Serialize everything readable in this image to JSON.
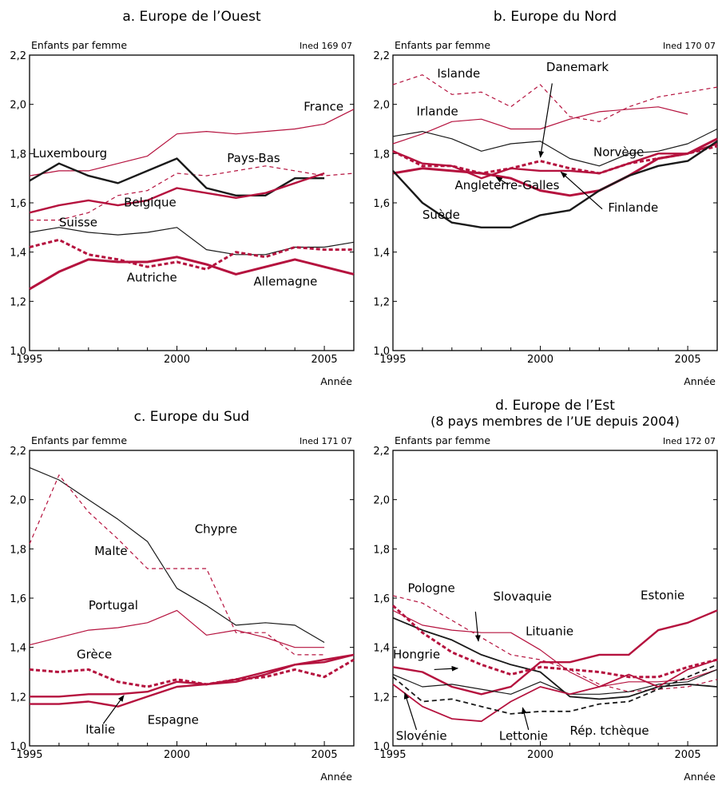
{
  "colors": {
    "red": "#b5123e",
    "black": "#1a1a1a"
  },
  "chart_data": [
    {
      "type": "line",
      "title": "a. Europe de l’Ouest",
      "subtitle": "",
      "ylabel": "Enfants par femme",
      "xlabel": "Année",
      "source": "Ined 169 07",
      "xlim": [
        1995,
        2006
      ],
      "ylim": [
        1.0,
        2.2
      ],
      "yticks": [
        "1,0",
        "1,2",
        "1,4",
        "1,6",
        "1,8",
        "2,0",
        "2,2"
      ],
      "xticks": [
        "1995",
        "2000",
        "2005"
      ],
      "x": [
        1995,
        1996,
        1997,
        1998,
        1999,
        2000,
        2001,
        2002,
        2003,
        2004,
        2005,
        2006
      ],
      "series": [
        {
          "name": "France",
          "color": "red",
          "width": 1.2,
          "dash": "",
          "values": [
            1.71,
            1.73,
            1.73,
            1.76,
            1.79,
            1.88,
            1.89,
            1.88,
            1.89,
            1.9,
            1.92,
            1.98
          ]
        },
        {
          "name": "Pays-Bas",
          "color": "red",
          "width": 1.2,
          "dash": "5,4",
          "values": [
            1.53,
            1.53,
            1.56,
            1.63,
            1.65,
            1.72,
            1.71,
            1.73,
            1.75,
            1.73,
            1.71,
            1.72
          ]
        },
        {
          "name": "Luxembourg",
          "color": "black",
          "width": 2.4,
          "dash": "",
          "values": [
            1.69,
            1.76,
            1.71,
            1.68,
            1.73,
            1.78,
            1.66,
            1.63,
            1.63,
            1.7,
            1.7,
            null
          ]
        },
        {
          "name": "Belgique",
          "color": "red",
          "width": 2.4,
          "dash": "",
          "values": [
            1.56,
            1.59,
            1.61,
            1.59,
            1.61,
            1.66,
            1.64,
            1.62,
            1.64,
            1.68,
            1.72,
            null
          ]
        },
        {
          "name": "Suisse",
          "color": "black",
          "width": 1.2,
          "dash": "",
          "values": [
            1.48,
            1.5,
            1.48,
            1.47,
            1.48,
            1.5,
            1.41,
            1.39,
            1.39,
            1.42,
            1.42,
            1.44
          ]
        },
        {
          "name": "Autriche",
          "color": "red",
          "width": 3,
          "dash": "5,3",
          "values": [
            1.42,
            1.45,
            1.39,
            1.37,
            1.34,
            1.36,
            1.33,
            1.4,
            1.38,
            1.42,
            1.41,
            1.41
          ]
        },
        {
          "name": "Allemagne",
          "color": "red",
          "width": 3,
          "dash": "",
          "values": [
            1.25,
            1.32,
            1.37,
            1.36,
            1.36,
            1.38,
            1.35,
            1.31,
            1.34,
            1.37,
            1.34,
            1.31
          ]
        }
      ],
      "annotations": [
        {
          "text": "France",
          "x": 2004.3,
          "y": 1.975
        },
        {
          "text": "Pays-Bas",
          "x": 2001.7,
          "y": 1.765
        },
        {
          "text": "Luxembourg",
          "x": 1995.1,
          "y": 1.785
        },
        {
          "text": "Belgique",
          "x": 1998.2,
          "y": 1.585
        },
        {
          "text": "Suisse",
          "x": 1996.0,
          "y": 1.505
        },
        {
          "text": "Autriche",
          "x": 1998.3,
          "y": 1.28
        },
        {
          "text": "Allemagne",
          "x": 2002.6,
          "y": 1.265
        }
      ],
      "arrows": []
    },
    {
      "type": "line",
      "title": "b. Europe du Nord",
      "subtitle": "",
      "ylabel": "Enfants par femme",
      "xlabel": "Année",
      "source": "Ined 170 07",
      "xlim": [
        1995,
        2006
      ],
      "ylim": [
        1.0,
        2.2
      ],
      "yticks": [
        "1,0",
        "1,2",
        "1,4",
        "1,6",
        "1,8",
        "2,0",
        "2,2"
      ],
      "xticks": [
        "1995",
        "2000",
        "2005"
      ],
      "x": [
        1995,
        1996,
        1997,
        1998,
        1999,
        2000,
        2001,
        2002,
        2003,
        2004,
        2005,
        2006
      ],
      "series": [
        {
          "name": "Islande",
          "color": "red",
          "width": 1.2,
          "dash": "5,4",
          "values": [
            2.08,
            2.12,
            2.04,
            2.05,
            1.99,
            2.08,
            1.95,
            1.93,
            1.99,
            2.03,
            2.05,
            2.07
          ]
        },
        {
          "name": "Irlande",
          "color": "red",
          "width": 1.2,
          "dash": "",
          "values": [
            1.84,
            1.88,
            1.93,
            1.94,
            1.9,
            1.9,
            1.94,
            1.97,
            1.98,
            1.99,
            1.96,
            null
          ]
        },
        {
          "name": "Norvège",
          "color": "black",
          "width": 1.2,
          "dash": "",
          "values": [
            1.87,
            1.89,
            1.86,
            1.81,
            1.84,
            1.85,
            1.78,
            1.75,
            1.8,
            1.81,
            1.84,
            1.9
          ]
        },
        {
          "name": "Danemark",
          "color": "red",
          "width": 3,
          "dash": "5,3",
          "values": [
            1.81,
            1.75,
            1.75,
            1.72,
            1.74,
            1.77,
            1.74,
            1.72,
            1.76,
            1.78,
            1.8,
            1.83
          ]
        },
        {
          "name": "Angleterre-Galles",
          "color": "red",
          "width": 3,
          "dash": "",
          "values": [
            1.72,
            1.74,
            1.73,
            1.72,
            1.7,
            1.65,
            1.63,
            1.65,
            1.71,
            1.78,
            1.8,
            1.86
          ]
        },
        {
          "name": "Finlande",
          "color": "red",
          "width": 2.4,
          "dash": "",
          "values": [
            1.81,
            1.76,
            1.75,
            1.7,
            1.74,
            1.73,
            1.73,
            1.72,
            1.76,
            1.8,
            1.8,
            1.84
          ]
        },
        {
          "name": "Suède",
          "color": "black",
          "width": 2.4,
          "dash": "",
          "values": [
            1.73,
            1.6,
            1.52,
            1.5,
            1.5,
            1.55,
            1.57,
            1.65,
            1.71,
            1.75,
            1.77,
            1.85
          ]
        }
      ],
      "annotations": [
        {
          "text": "Islande",
          "x": 1996.5,
          "y": 2.11
        },
        {
          "text": "Danemark",
          "x": 2000.2,
          "y": 2.135
        },
        {
          "text": "Irlande",
          "x": 1995.8,
          "y": 1.955
        },
        {
          "text": "Norvège",
          "x": 2001.8,
          "y": 1.79
        },
        {
          "text": "Angleterre-Galles",
          "x": 1997.1,
          "y": 1.655
        },
        {
          "text": "Finlande",
          "x": 2002.3,
          "y": 1.565
        },
        {
          "text": "Suède",
          "x": 1996.0,
          "y": 1.535
        }
      ],
      "arrows": [
        {
          "from": [
            2000.4,
            2.085
          ],
          "to": [
            2000.0,
            1.785
          ]
        },
        {
          "from": [
            1998.9,
            1.675
          ],
          "to": [
            1998.5,
            1.705
          ]
        },
        {
          "from": [
            2002.1,
            1.575
          ],
          "to": [
            2000.7,
            1.725
          ]
        }
      ]
    },
    {
      "type": "line",
      "title": "c. Europe du Sud",
      "subtitle": "",
      "ylabel": "Enfants par femme",
      "xlabel": "Année",
      "source": "Ined 171 07",
      "xlim": [
        1995,
        2006
      ],
      "ylim": [
        1.0,
        2.2
      ],
      "yticks": [
        "1,0",
        "1,2",
        "1,4",
        "1,6",
        "1,8",
        "2,0",
        "2,2"
      ],
      "xticks": [
        "1995",
        "2000",
        "2005"
      ],
      "x": [
        1995,
        1996,
        1997,
        1998,
        1999,
        2000,
        2001,
        2002,
        2003,
        2004,
        2005,
        2006
      ],
      "series": [
        {
          "name": "Chypre",
          "color": "black",
          "width": 1.2,
          "dash": "",
          "values": [
            2.13,
            2.08,
            2.0,
            1.92,
            1.83,
            1.64,
            1.57,
            1.49,
            1.5,
            1.49,
            1.42,
            null
          ]
        },
        {
          "name": "Malte",
          "color": "red",
          "width": 1.2,
          "dash": "5,4",
          "values": [
            1.82,
            2.1,
            1.95,
            1.84,
            1.72,
            1.72,
            1.72,
            1.46,
            1.46,
            1.37,
            1.37,
            null
          ]
        },
        {
          "name": "Portugal",
          "color": "red",
          "width": 1.2,
          "dash": "",
          "values": [
            1.41,
            1.44,
            1.47,
            1.48,
            1.5,
            1.55,
            1.45,
            1.47,
            1.44,
            1.4,
            1.4,
            null
          ]
        },
        {
          "name": "Grèce",
          "color": "red",
          "width": 3,
          "dash": "5,3",
          "values": [
            1.31,
            1.3,
            1.31,
            1.26,
            1.24,
            1.27,
            1.25,
            1.27,
            1.28,
            1.31,
            1.28,
            1.35
          ]
        },
        {
          "name": "Espagne",
          "color": "red",
          "width": 2.4,
          "dash": "",
          "values": [
            1.17,
            1.17,
            1.18,
            1.16,
            1.2,
            1.24,
            1.25,
            1.26,
            1.29,
            1.33,
            1.34,
            1.37
          ]
        },
        {
          "name": "Italie",
          "color": "red",
          "width": 2.4,
          "dash": "",
          "values": [
            1.2,
            1.2,
            1.21,
            1.21,
            1.22,
            1.26,
            1.25,
            1.27,
            1.3,
            1.33,
            1.35,
            1.37
          ]
        }
      ],
      "annotations": [
        {
          "text": "Chypre",
          "x": 2000.6,
          "y": 1.865
        },
        {
          "text": "Malte",
          "x": 1997.2,
          "y": 1.775
        },
        {
          "text": "Portugal",
          "x": 1997.0,
          "y": 1.555
        },
        {
          "text": "Grèce",
          "x": 1996.6,
          "y": 1.355
        },
        {
          "text": "Espagne",
          "x": 1999.0,
          "y": 1.09
        },
        {
          "text": "Italie",
          "x": 1996.9,
          "y": 1.05
        }
      ],
      "arrows": [
        {
          "from": [
            1997.5,
            1.09
          ],
          "to": [
            1998.2,
            1.205
          ]
        }
      ]
    },
    {
      "type": "line",
      "title": "d. Europe de l’Est",
      "subtitle": "(8 pays membres de l’UE depuis 2004)",
      "ylabel": "Enfants par femme",
      "xlabel": "Année",
      "source": "Ined 172 07",
      "xlim": [
        1995,
        2006
      ],
      "ylim": [
        1.0,
        2.2
      ],
      "yticks": [
        "1,0",
        "1,2",
        "1,4",
        "1,6",
        "1,8",
        "2,0",
        "2,2"
      ],
      "xticks": [
        "1995",
        "2000",
        "2005"
      ],
      "x": [
        1995,
        1996,
        1997,
        1998,
        1999,
        2000,
        2001,
        2002,
        2003,
        2004,
        2005,
        2006
      ],
      "series": [
        {
          "name": "Pologne",
          "color": "red",
          "width": 1.2,
          "dash": "5,4",
          "values": [
            1.61,
            1.58,
            1.51,
            1.44,
            1.37,
            1.35,
            1.31,
            1.25,
            1.22,
            1.23,
            1.24,
            1.27
          ]
        },
        {
          "name": "Lituanie",
          "color": "red",
          "width": 1.2,
          "dash": "",
          "values": [
            1.55,
            1.49,
            1.47,
            1.46,
            1.46,
            1.39,
            1.3,
            1.24,
            1.26,
            1.26,
            1.27,
            1.31
          ]
        },
        {
          "name": "Slovaquie",
          "color": "black",
          "width": 1.8,
          "dash": "",
          "values": [
            1.52,
            1.47,
            1.43,
            1.37,
            1.33,
            1.3,
            1.2,
            1.19,
            1.2,
            1.24,
            1.25,
            1.24
          ]
        },
        {
          "name": "Estonie",
          "color": "red",
          "width": 2.4,
          "dash": "",
          "values": [
            1.32,
            1.3,
            1.24,
            1.21,
            1.24,
            1.34,
            1.34,
            1.37,
            1.37,
            1.47,
            1.5,
            1.55
          ]
        },
        {
          "name": "Hongrie",
          "color": "red",
          "width": 3,
          "dash": "5,3",
          "values": [
            1.57,
            1.46,
            1.38,
            1.33,
            1.29,
            1.32,
            1.31,
            1.3,
            1.28,
            1.28,
            1.32,
            1.35
          ]
        },
        {
          "name": "Slovénie",
          "color": "black",
          "width": 1.2,
          "dash": "",
          "values": [
            1.29,
            1.24,
            1.25,
            1.23,
            1.21,
            1.26,
            1.21,
            1.21,
            1.22,
            1.25,
            1.26,
            1.31
          ]
        },
        {
          "name": "Lettonie",
          "color": "red",
          "width": 1.8,
          "dash": "",
          "values": [
            1.25,
            1.16,
            1.11,
            1.1,
            1.18,
            1.24,
            1.21,
            1.24,
            1.29,
            1.24,
            1.31,
            1.35
          ]
        },
        {
          "name": "Rép. tchèque",
          "color": "black",
          "width": 1.8,
          "dash": "6,4",
          "values": [
            1.28,
            1.18,
            1.19,
            1.16,
            1.13,
            1.14,
            1.14,
            1.17,
            1.18,
            1.23,
            1.28,
            1.33
          ]
        }
      ],
      "annotations": [
        {
          "text": "Pologne",
          "x": 1995.5,
          "y": 1.625
        },
        {
          "text": "Slovaquie",
          "x": 1998.4,
          "y": 1.59
        },
        {
          "text": "Estonie",
          "x": 2003.4,
          "y": 1.595
        },
        {
          "text": "Lituanie",
          "x": 1999.5,
          "y": 1.45
        },
        {
          "text": "Hongrie",
          "x": 1995.0,
          "y": 1.355
        },
        {
          "text": "Slovénie",
          "x": 1995.1,
          "y": 1.025
        },
        {
          "text": "Lettonie",
          "x": 1998.6,
          "y": 1.025
        },
        {
          "text": "Rép. tchèque",
          "x": 2001.0,
          "y": 1.045
        }
      ],
      "arrows": [
        {
          "from": [
            1997.8,
            1.545
          ],
          "to": [
            1997.9,
            1.425
          ]
        },
        {
          "from": [
            1996.4,
            1.31
          ],
          "to": [
            1997.2,
            1.315
          ]
        },
        {
          "from": [
            1995.8,
            1.065
          ],
          "to": [
            1995.4,
            1.215
          ]
        },
        {
          "from": [
            1999.6,
            1.065
          ],
          "to": [
            1999.4,
            1.155
          ]
        }
      ]
    }
  ]
}
